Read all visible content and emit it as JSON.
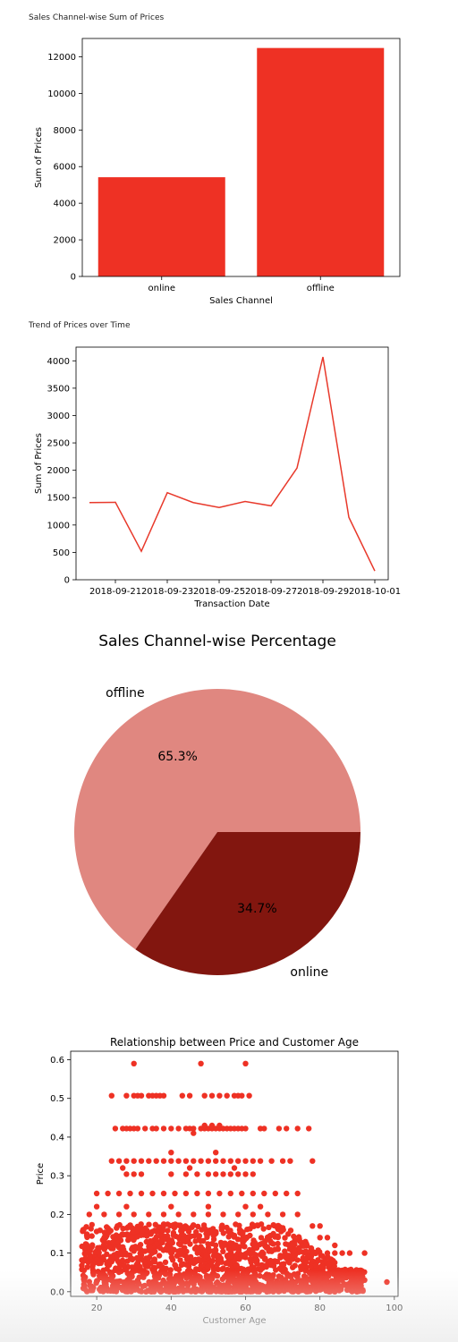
{
  "captions": {
    "bar": "Sales Channel-wise Sum of Prices",
    "line": "Trend of Prices over Time"
  },
  "colors": {
    "red": "#ee3124",
    "line": "#e8392b",
    "pie_light": "#e08780",
    "pie_dark": "#82160f"
  },
  "chart_data": [
    {
      "type": "bar",
      "categories": [
        "online",
        "offline"
      ],
      "values": [
        5420,
        12480
      ],
      "xlabel": "Sales Channel",
      "ylabel": "Sum of Prices",
      "ylim": [
        0,
        13000
      ],
      "yticks": [
        0,
        2000,
        4000,
        6000,
        8000,
        10000,
        12000
      ],
      "grid": false
    },
    {
      "type": "line",
      "x": [
        "2018-09-20",
        "2018-09-21",
        "2018-09-22",
        "2018-09-23",
        "2018-09-24",
        "2018-09-25",
        "2018-09-26",
        "2018-09-27",
        "2018-09-28",
        "2018-09-29",
        "2018-09-30",
        "2018-10-01"
      ],
      "values": [
        1410,
        1415,
        520,
        1590,
        1410,
        1320,
        1430,
        1350,
        2040,
        4070,
        1140,
        160
      ],
      "xlabel": "Transaction Date",
      "ylabel": "Sum of Prices",
      "ylim": [
        0,
        4250
      ],
      "yticks": [
        0,
        500,
        1000,
        1500,
        2000,
        2500,
        3000,
        3500,
        4000
      ],
      "xticks": [
        "2018-09-21",
        "2018-09-23",
        "2018-09-25",
        "2018-09-27",
        "2018-09-29",
        "2018-10-01"
      ],
      "grid": false
    },
    {
      "type": "pie",
      "title": "Sales Channel-wise Percentage",
      "labels": [
        "offline",
        "online"
      ],
      "values": [
        65.3,
        34.7
      ],
      "autopct": [
        "65.3%",
        "34.7%"
      ]
    },
    {
      "type": "scatter",
      "title": "Relationship between Price and Customer Age",
      "xlabel": "Customer Age",
      "ylabel": "Price",
      "xlim": [
        13,
        101
      ],
      "ylim": [
        -0.012,
        0.622
      ],
      "xticks": [
        20,
        40,
        60,
        80,
        100
      ],
      "yticks": [
        0.0,
        0.1,
        0.2,
        0.3,
        0.4,
        0.5,
        0.6
      ],
      "ytick_labels": [
        "0.0",
        "0.1",
        "0.2",
        "0.3",
        "0.4",
        "0.5",
        "0.6"
      ],
      "grid": false,
      "points": [
        [
          30,
          0.59
        ],
        [
          48,
          0.59
        ],
        [
          60,
          0.59
        ],
        [
          24,
          0.507
        ],
        [
          28,
          0.507
        ],
        [
          30,
          0.507
        ],
        [
          31,
          0.507
        ],
        [
          32,
          0.507
        ],
        [
          34,
          0.507
        ],
        [
          35,
          0.507
        ],
        [
          36,
          0.507
        ],
        [
          37,
          0.507
        ],
        [
          38,
          0.507
        ],
        [
          43,
          0.507
        ],
        [
          45,
          0.507
        ],
        [
          49,
          0.507
        ],
        [
          51,
          0.507
        ],
        [
          53,
          0.507
        ],
        [
          55,
          0.507
        ],
        [
          57,
          0.507
        ],
        [
          58,
          0.507
        ],
        [
          59,
          0.507
        ],
        [
          61,
          0.507
        ],
        [
          25,
          0.422
        ],
        [
          27,
          0.422
        ],
        [
          28,
          0.422
        ],
        [
          29,
          0.422
        ],
        [
          30,
          0.422
        ],
        [
          31,
          0.422
        ],
        [
          33,
          0.422
        ],
        [
          35,
          0.422
        ],
        [
          36,
          0.422
        ],
        [
          38,
          0.422
        ],
        [
          40,
          0.422
        ],
        [
          42,
          0.422
        ],
        [
          44,
          0.422
        ],
        [
          45,
          0.422
        ],
        [
          46,
          0.422
        ],
        [
          48,
          0.422
        ],
        [
          49,
          0.422
        ],
        [
          50,
          0.422
        ],
        [
          51,
          0.422
        ],
        [
          52,
          0.422
        ],
        [
          53,
          0.422
        ],
        [
          54,
          0.422
        ],
        [
          55,
          0.422
        ],
        [
          56,
          0.422
        ],
        [
          57,
          0.422
        ],
        [
          58,
          0.422
        ],
        [
          59,
          0.422
        ],
        [
          60,
          0.422
        ],
        [
          64,
          0.422
        ],
        [
          65,
          0.422
        ],
        [
          69,
          0.422
        ],
        [
          71,
          0.422
        ],
        [
          74,
          0.422
        ],
        [
          77,
          0.422
        ],
        [
          49,
          0.43
        ],
        [
          51,
          0.43
        ],
        [
          53,
          0.43
        ],
        [
          46,
          0.41
        ],
        [
          40,
          0.36
        ],
        [
          52,
          0.36
        ],
        [
          27,
          0.32
        ],
        [
          45,
          0.32
        ],
        [
          57,
          0.32
        ],
        [
          24,
          0.338
        ],
        [
          26,
          0.338
        ],
        [
          28,
          0.338
        ],
        [
          30,
          0.338
        ],
        [
          32,
          0.338
        ],
        [
          34,
          0.338
        ],
        [
          36,
          0.338
        ],
        [
          38,
          0.338
        ],
        [
          40,
          0.338
        ],
        [
          42,
          0.338
        ],
        [
          44,
          0.338
        ],
        [
          46,
          0.338
        ],
        [
          48,
          0.338
        ],
        [
          50,
          0.338
        ],
        [
          52,
          0.338
        ],
        [
          54,
          0.338
        ],
        [
          56,
          0.338
        ],
        [
          58,
          0.338
        ],
        [
          60,
          0.338
        ],
        [
          62,
          0.338
        ],
        [
          64,
          0.338
        ],
        [
          67,
          0.338
        ],
        [
          70,
          0.338
        ],
        [
          72,
          0.338
        ],
        [
          78,
          0.338
        ],
        [
          28,
          0.304
        ],
        [
          30,
          0.304
        ],
        [
          32,
          0.304
        ],
        [
          40,
          0.304
        ],
        [
          44,
          0.304
        ],
        [
          47,
          0.304
        ],
        [
          50,
          0.304
        ],
        [
          52,
          0.304
        ],
        [
          54,
          0.304
        ],
        [
          56,
          0.304
        ],
        [
          58,
          0.304
        ],
        [
          60,
          0.304
        ],
        [
          62,
          0.304
        ],
        [
          20,
          0.254
        ],
        [
          23,
          0.254
        ],
        [
          26,
          0.254
        ],
        [
          29,
          0.254
        ],
        [
          32,
          0.254
        ],
        [
          35,
          0.254
        ],
        [
          38,
          0.254
        ],
        [
          41,
          0.254
        ],
        [
          44,
          0.254
        ],
        [
          47,
          0.254
        ],
        [
          50,
          0.254
        ],
        [
          53,
          0.254
        ],
        [
          56,
          0.254
        ],
        [
          59,
          0.254
        ],
        [
          62,
          0.254
        ],
        [
          65,
          0.254
        ],
        [
          68,
          0.254
        ],
        [
          71,
          0.254
        ],
        [
          74,
          0.254
        ],
        [
          18,
          0.2
        ],
        [
          22,
          0.2
        ],
        [
          26,
          0.2
        ],
        [
          30,
          0.2
        ],
        [
          34,
          0.2
        ],
        [
          38,
          0.2
        ],
        [
          42,
          0.2
        ],
        [
          46,
          0.2
        ],
        [
          50,
          0.2
        ],
        [
          54,
          0.2
        ],
        [
          58,
          0.2
        ],
        [
          62,
          0.2
        ],
        [
          66,
          0.2
        ],
        [
          70,
          0.2
        ],
        [
          74,
          0.2
        ],
        [
          20,
          0.22
        ],
        [
          28,
          0.22
        ],
        [
          40,
          0.22
        ],
        [
          50,
          0.22
        ],
        [
          60,
          0.22
        ],
        [
          64,
          0.22
        ],
        [
          78,
          0.17
        ],
        [
          80,
          0.17
        ],
        [
          80,
          0.14
        ],
        [
          82,
          0.14
        ],
        [
          84,
          0.12
        ],
        [
          82,
          0.1
        ],
        [
          84,
          0.1
        ],
        [
          86,
          0.1
        ],
        [
          88,
          0.1
        ],
        [
          92,
          0.1
        ],
        [
          85,
          0.05
        ],
        [
          86,
          0.03
        ],
        [
          88,
          0.04
        ],
        [
          90,
          0.04
        ],
        [
          91,
          0.04
        ],
        [
          92,
          0.03
        ],
        [
          98,
          0.025
        ]
      ],
      "dense_region": {
        "x_range": [
          16,
          84
        ],
        "y_range": [
          0.0,
          0.175
        ],
        "sparse_x_range": [
          84,
          92
        ],
        "sparse_y_range": [
          0.0,
          0.06
        ]
      }
    }
  ]
}
